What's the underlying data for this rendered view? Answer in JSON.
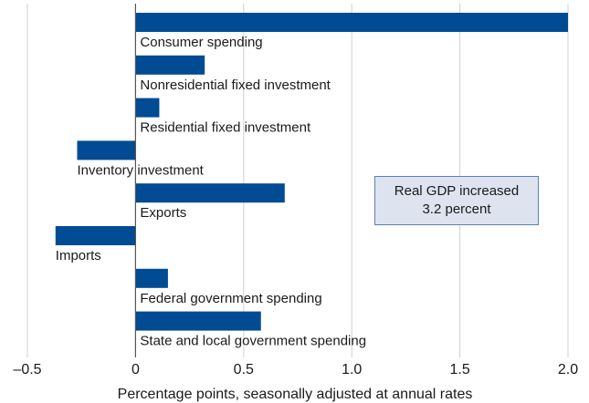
{
  "chart_data": {
    "type": "bar",
    "orientation": "horizontal",
    "categories": [
      "Consumer spending",
      "Nonresidential fixed investment",
      "Residential fixed investment",
      "Inventory investment",
      "Exports",
      "Imports",
      "Federal government spending",
      "State and local government spending"
    ],
    "values": [
      2.0,
      0.32,
      0.11,
      -0.27,
      0.69,
      -0.37,
      0.15,
      0.58
    ],
    "xlabel": "Percentage points, seasonally adjusted at annual rates",
    "xlim": [
      -0.5,
      2.0
    ],
    "xticks": [
      "–0.5",
      "0",
      "0.5",
      "1.0",
      "1.5",
      "2.0"
    ],
    "xtick_values": [
      -0.5,
      0,
      0.5,
      1.0,
      1.5,
      2.0
    ],
    "bar_color": "#004b93",
    "grid": "vertical",
    "annotation": [
      "Real GDP increased",
      "3.2 percent"
    ]
  }
}
